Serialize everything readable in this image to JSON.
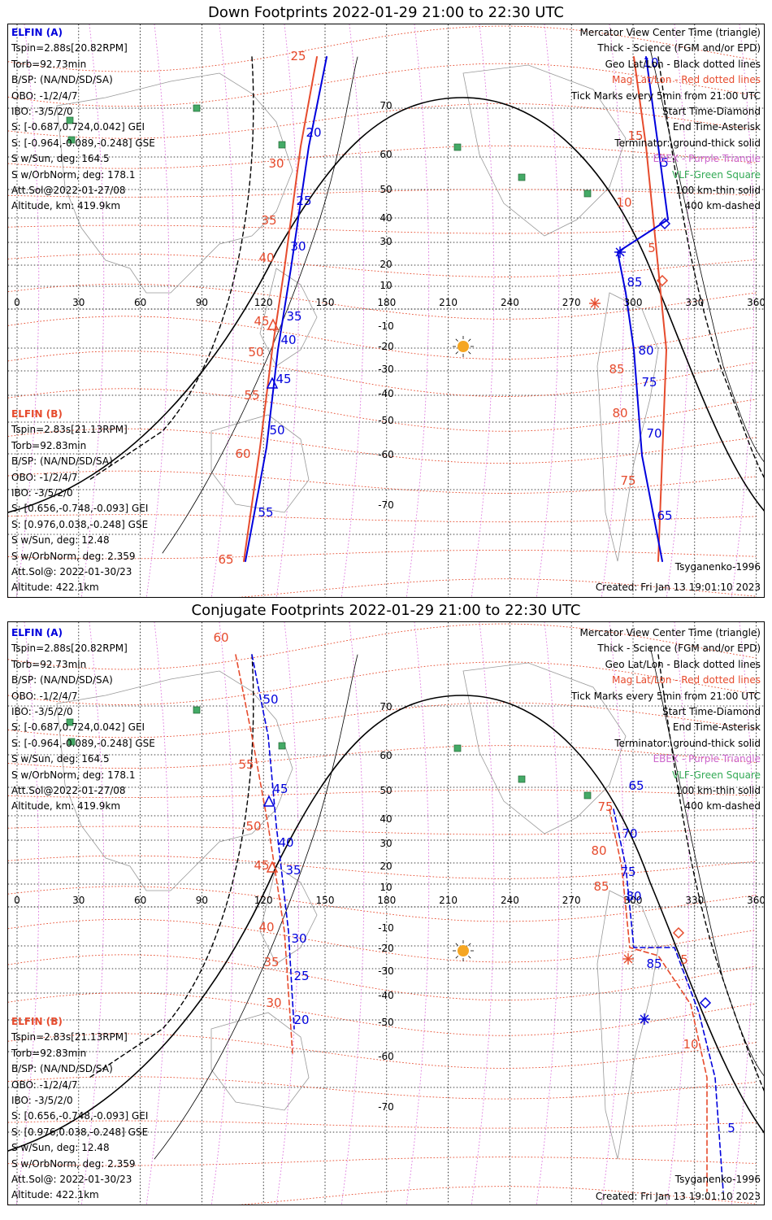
{
  "titles": {
    "down": "Down Footprints 2022-01-29 21:00 to 22:30 UTC",
    "conj": "Conjugate Footprints 2022-01-29 21:00 to 22:30 UTC"
  },
  "elfin_a": {
    "name": "ELFIN (A)",
    "lines": [
      "Tspin=2.88s[20.82RPM]",
      "Torb=92.73min",
      "B/SP: (NA/ND/SD/SA)",
      "OBO: -1/2/4/7",
      "IBO: -3/5/2/0",
      "S: [-0.687,0.724,0.042] GEI",
      "S: [-0.964,-0.089,-0.248] GSE",
      "S w/Sun, deg: 164.5",
      "S w/OrbNorm, deg: 178.1",
      "Att.Sol@2022-01-27/08",
      "Altitude, km: 419.9km"
    ]
  },
  "elfin_b": {
    "name": "ELFIN (B)",
    "lines": [
      "Tspin=2.83s[21.13RPM]",
      "Torb=92.83min",
      "B/SP: (NA/ND/SD/SA)",
      "OBO: -1/2/4/7",
      "IBO: -3/5/2/0",
      "S: [0.656,-0.748,-0.093] GEI",
      "S: [0.976,0.038,-0.248] GSE",
      "S w/Sun, deg: 12.48",
      "S w/OrbNorm, deg: 2.359",
      "Att.Sol@: 2022-01-30/23",
      "Altitude: 422.1km"
    ]
  },
  "legend": {
    "view": "Mercator View Center Time (triangle)",
    "thick": "Thick - Science (FGM and/or EPD)",
    "geo": "Geo Lat/Lon - Black dotted lines",
    "mag": "Mag Lat/Lon - Red dotted lines",
    "ticks": "Tick Marks every 5min from 21:00 UTC",
    "start": "Start Time-Diamond",
    "end": "End Time-Asterisk",
    "terminator": "Terminator: ground-thick solid",
    "ebex": "EBEX - Purple Triangle",
    "vlf": "VLF-Green Square",
    "km100": "100 km-thin solid",
    "km400": "400 km-dashed"
  },
  "footer": {
    "model": "Tsyganenko-1996",
    "created": "Created: Fri Jan 13 19:01:10 2023"
  },
  "axes": {
    "lon_ticks": [
      "0",
      "30",
      "60",
      "90",
      "120",
      "150",
      "180",
      "210",
      "240",
      "270",
      "300",
      "330",
      "360"
    ],
    "lat_ticks": [
      "70",
      "60",
      "50",
      "40",
      "30",
      "20",
      "10",
      "-10",
      "-20",
      "-30",
      "-40",
      "-50",
      "-60",
      "-70"
    ]
  },
  "down_labels": {
    "blue": [
      "10",
      "5",
      "20",
      "25",
      "30",
      "35",
      "40",
      "45",
      "50",
      "55",
      "85",
      "80",
      "75",
      "70",
      "65"
    ],
    "red": [
      "25",
      "30",
      "35",
      "40",
      "45",
      "50",
      "55",
      "60",
      "65",
      "15",
      "10",
      "5",
      "85",
      "80",
      "75"
    ]
  },
  "conj_labels": {
    "blue": [
      "50",
      "45",
      "40",
      "35",
      "30",
      "25",
      "20",
      "65",
      "70",
      "75",
      "80",
      "85",
      "5"
    ],
    "red": [
      "60",
      "55",
      "50",
      "45",
      "40",
      "35",
      "30",
      "75",
      "80",
      "85",
      "5",
      "10"
    ]
  },
  "colors": {
    "blue": "#0000dd",
    "red": "#e64b2d",
    "purple": "#cc66cc",
    "green": "#33aa55",
    "sun": "#f5a623"
  }
}
